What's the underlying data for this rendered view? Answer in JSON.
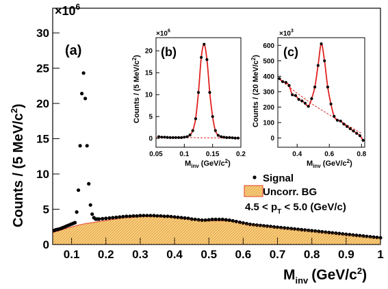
{
  "chart_data": [
    {
      "type": "scatter",
      "panel_label": "(a)",
      "xlabel": "M",
      "xlabel_sub": "inv",
      "xlabel_unit": "(GeV/c",
      "xlabel_sup": "2",
      "xlabel_close": ")",
      "ylabel": "Counts / (5 MeV/c",
      "ylabel_sup": "2",
      "ylabel_close": ")",
      "y_multiplier_text": "×10",
      "y_multiplier_exp": "6",
      "xlim": [
        0.045,
        1.0
      ],
      "ylim": [
        0,
        33.5
      ],
      "xticks": [
        0.1,
        0.2,
        0.3,
        0.4,
        0.5,
        0.6,
        0.7,
        0.8,
        0.9,
        1
      ],
      "xtick_labels": [
        "0.1",
        "0.2",
        "0.3",
        "0.4",
        "0.5",
        "0.6",
        "0.7",
        "0.8",
        "0.9",
        "1"
      ],
      "yticks": [
        0,
        5,
        10,
        15,
        20,
        25,
        30
      ],
      "ytick_labels": [
        "0",
        "5",
        "10",
        "15",
        "20",
        "25",
        "30"
      ],
      "legend": {
        "signal": "Signal",
        "bg": "Uncorr. BG",
        "pt_pre": "4.5 < p",
        "pt_sub": "T",
        "pt_post": " < 5.0 (GeV/c)"
      },
      "series": [
        {
          "name": "Signal",
          "x": [
            0.05,
            0.055,
            0.06,
            0.065,
            0.07,
            0.075,
            0.08,
            0.085,
            0.09,
            0.095,
            0.1,
            0.105,
            0.11,
            0.115,
            0.12,
            0.125,
            0.13,
            0.135,
            0.14,
            0.145,
            0.15,
            0.155,
            0.16,
            0.165,
            0.17,
            0.175,
            0.18,
            0.19,
            0.2,
            0.21,
            0.22,
            0.23,
            0.24,
            0.25,
            0.26,
            0.27,
            0.28,
            0.29,
            0.3,
            0.31,
            0.32,
            0.33,
            0.34,
            0.35,
            0.36,
            0.37,
            0.38,
            0.39,
            0.4,
            0.41,
            0.42,
            0.43,
            0.44,
            0.45,
            0.46,
            0.47,
            0.48,
            0.49,
            0.5,
            0.51,
            0.52,
            0.53,
            0.54,
            0.55,
            0.56,
            0.57,
            0.58,
            0.59,
            0.6,
            0.61,
            0.62,
            0.63,
            0.64,
            0.65,
            0.66,
            0.67,
            0.68,
            0.69,
            0.7,
            0.71,
            0.72,
            0.73,
            0.74,
            0.75,
            0.76,
            0.77,
            0.78,
            0.79,
            0.8,
            0.81,
            0.82,
            0.83,
            0.84,
            0.85,
            0.86,
            0.87,
            0.88,
            0.89,
            0.9,
            0.91,
            0.92,
            0.93,
            0.94,
            0.95,
            0.96,
            0.97,
            0.98,
            0.99,
            1.0
          ],
          "y": [
            2.0,
            2.1,
            2.15,
            2.2,
            2.3,
            2.4,
            2.5,
            2.6,
            2.7,
            2.8,
            2.9,
            3.0,
            3.1,
            4.6,
            7.7,
            14.0,
            21.4,
            24.3,
            20.7,
            14.0,
            8.6,
            5.6,
            4.3,
            3.8,
            3.6,
            3.6,
            3.6,
            3.65,
            3.7,
            3.75,
            3.8,
            3.85,
            3.9,
            3.95,
            4.0,
            4.0,
            4.05,
            4.05,
            4.1,
            4.1,
            4.1,
            4.1,
            4.1,
            4.05,
            4.05,
            4.0,
            4.0,
            3.95,
            3.9,
            3.85,
            3.8,
            3.75,
            3.7,
            3.6,
            3.55,
            3.5,
            3.45,
            3.45,
            3.5,
            3.55,
            3.55,
            3.55,
            3.55,
            3.5,
            3.45,
            3.35,
            3.25,
            3.15,
            3.05,
            2.95,
            2.85,
            2.8,
            2.75,
            2.7,
            2.65,
            2.6,
            2.55,
            2.5,
            2.45,
            2.4,
            2.35,
            2.3,
            2.25,
            2.2,
            2.15,
            2.1,
            2.05,
            2.0,
            1.95,
            1.9,
            1.85,
            1.8,
            1.75,
            1.7,
            1.65,
            1.6,
            1.55,
            1.5,
            1.45,
            1.4,
            1.35,
            1.3,
            1.25,
            1.2,
            1.15,
            1.1,
            1.05,
            1.0,
            0.95
          ]
        },
        {
          "name": "Uncorr. BG",
          "x": [
            0.045,
            0.06,
            0.08,
            0.1,
            0.12,
            0.14,
            0.16,
            0.18,
            0.2,
            0.22,
            0.25,
            0.28,
            0.31,
            0.34,
            0.37,
            0.4,
            0.43,
            0.46,
            0.49,
            0.5,
            0.52,
            0.54,
            0.56,
            0.58,
            0.6,
            0.65,
            0.7,
            0.75,
            0.8,
            0.85,
            0.9,
            0.95,
            1.0
          ],
          "y": [
            1.7,
            1.9,
            2.2,
            2.5,
            2.75,
            2.95,
            3.1,
            3.25,
            3.4,
            3.55,
            3.75,
            3.85,
            3.95,
            3.95,
            3.9,
            3.8,
            3.65,
            3.5,
            3.35,
            3.35,
            3.35,
            3.35,
            3.3,
            3.2,
            3.05,
            2.75,
            2.45,
            2.2,
            1.95,
            1.7,
            1.45,
            1.2,
            0.95
          ]
        }
      ]
    },
    {
      "type": "scatter",
      "panel_label": "(b)",
      "xlabel": "M",
      "xlabel_sub": "inv",
      "xlabel_unit": " (GeV/c",
      "xlabel_sup": "2",
      "xlabel_close": ")",
      "ylabel": "Counts / (5 MeV/c",
      "ylabel_sup": "2",
      "ylabel_close": ")",
      "y_multiplier_text": "×10",
      "y_multiplier_exp": "6",
      "xlim": [
        0.05,
        0.2
      ],
      "ylim": [
        -2,
        23
      ],
      "xticks": [
        0.05,
        0.1,
        0.15,
        0.2
      ],
      "xtick_labels": [
        "0.05",
        "0.1",
        "0.15",
        "0.2"
      ],
      "yticks": [
        0,
        5,
        10,
        15,
        20
      ],
      "ytick_labels": [
        "0",
        "5",
        "10",
        "15",
        "20"
      ],
      "series": [
        {
          "name": "Signal",
          "x": [
            0.055,
            0.06,
            0.065,
            0.07,
            0.075,
            0.08,
            0.085,
            0.09,
            0.095,
            0.1,
            0.105,
            0.11,
            0.115,
            0.12,
            0.125,
            0.13,
            0.135,
            0.14,
            0.145,
            0.15,
            0.155,
            0.16,
            0.165,
            0.17,
            0.175,
            0.18,
            0.185,
            0.19,
            0.195
          ],
          "y": [
            0.4,
            0.3,
            0.3,
            0.25,
            0.2,
            0.2,
            0.2,
            0.2,
            0.2,
            0.3,
            0.4,
            0.8,
            1.8,
            4.5,
            10.5,
            18.5,
            21.5,
            18.0,
            10.5,
            5.0,
            1.8,
            0.7,
            0.4,
            0.3,
            0.2,
            0.2,
            0.15,
            0.1,
            0.1
          ]
        }
      ]
    },
    {
      "type": "scatter",
      "panel_label": "(c)",
      "xlabel": "M",
      "xlabel_sub": "inv",
      "xlabel_unit": " (GeV/c",
      "xlabel_sup": "2",
      "xlabel_close": ")",
      "ylabel": "Counts / (20 MeV/c",
      "ylabel_sup": "2",
      "ylabel_close": ")",
      "y_multiplier_text": "×10",
      "y_multiplier_exp": "3",
      "xlim": [
        0.28,
        0.82
      ],
      "ylim": [
        -60,
        650
      ],
      "xticks": [
        0.4,
        0.6,
        0.8
      ],
      "xtick_labels": [
        "0.4",
        "0.6",
        "0.8"
      ],
      "yticks": [
        0,
        100,
        200,
        300,
        400,
        500,
        600
      ],
      "ytick_labels": [
        "0",
        "100",
        "200",
        "300",
        "400",
        "500",
        "600"
      ],
      "series": [
        {
          "name": "Signal",
          "x": [
            0.29,
            0.31,
            0.33,
            0.35,
            0.37,
            0.39,
            0.41,
            0.43,
            0.45,
            0.47,
            0.49,
            0.51,
            0.53,
            0.55,
            0.57,
            0.59,
            0.61,
            0.63,
            0.65,
            0.67,
            0.69,
            0.71,
            0.73,
            0.75,
            0.77,
            0.79,
            0.81
          ],
          "y": [
            385,
            365,
            360,
            340,
            280,
            275,
            250,
            240,
            225,
            205,
            255,
            330,
            470,
            610,
            500,
            330,
            220,
            140,
            115,
            110,
            90,
            75,
            60,
            45,
            30,
            15,
            -15
          ]
        }
      ]
    }
  ]
}
